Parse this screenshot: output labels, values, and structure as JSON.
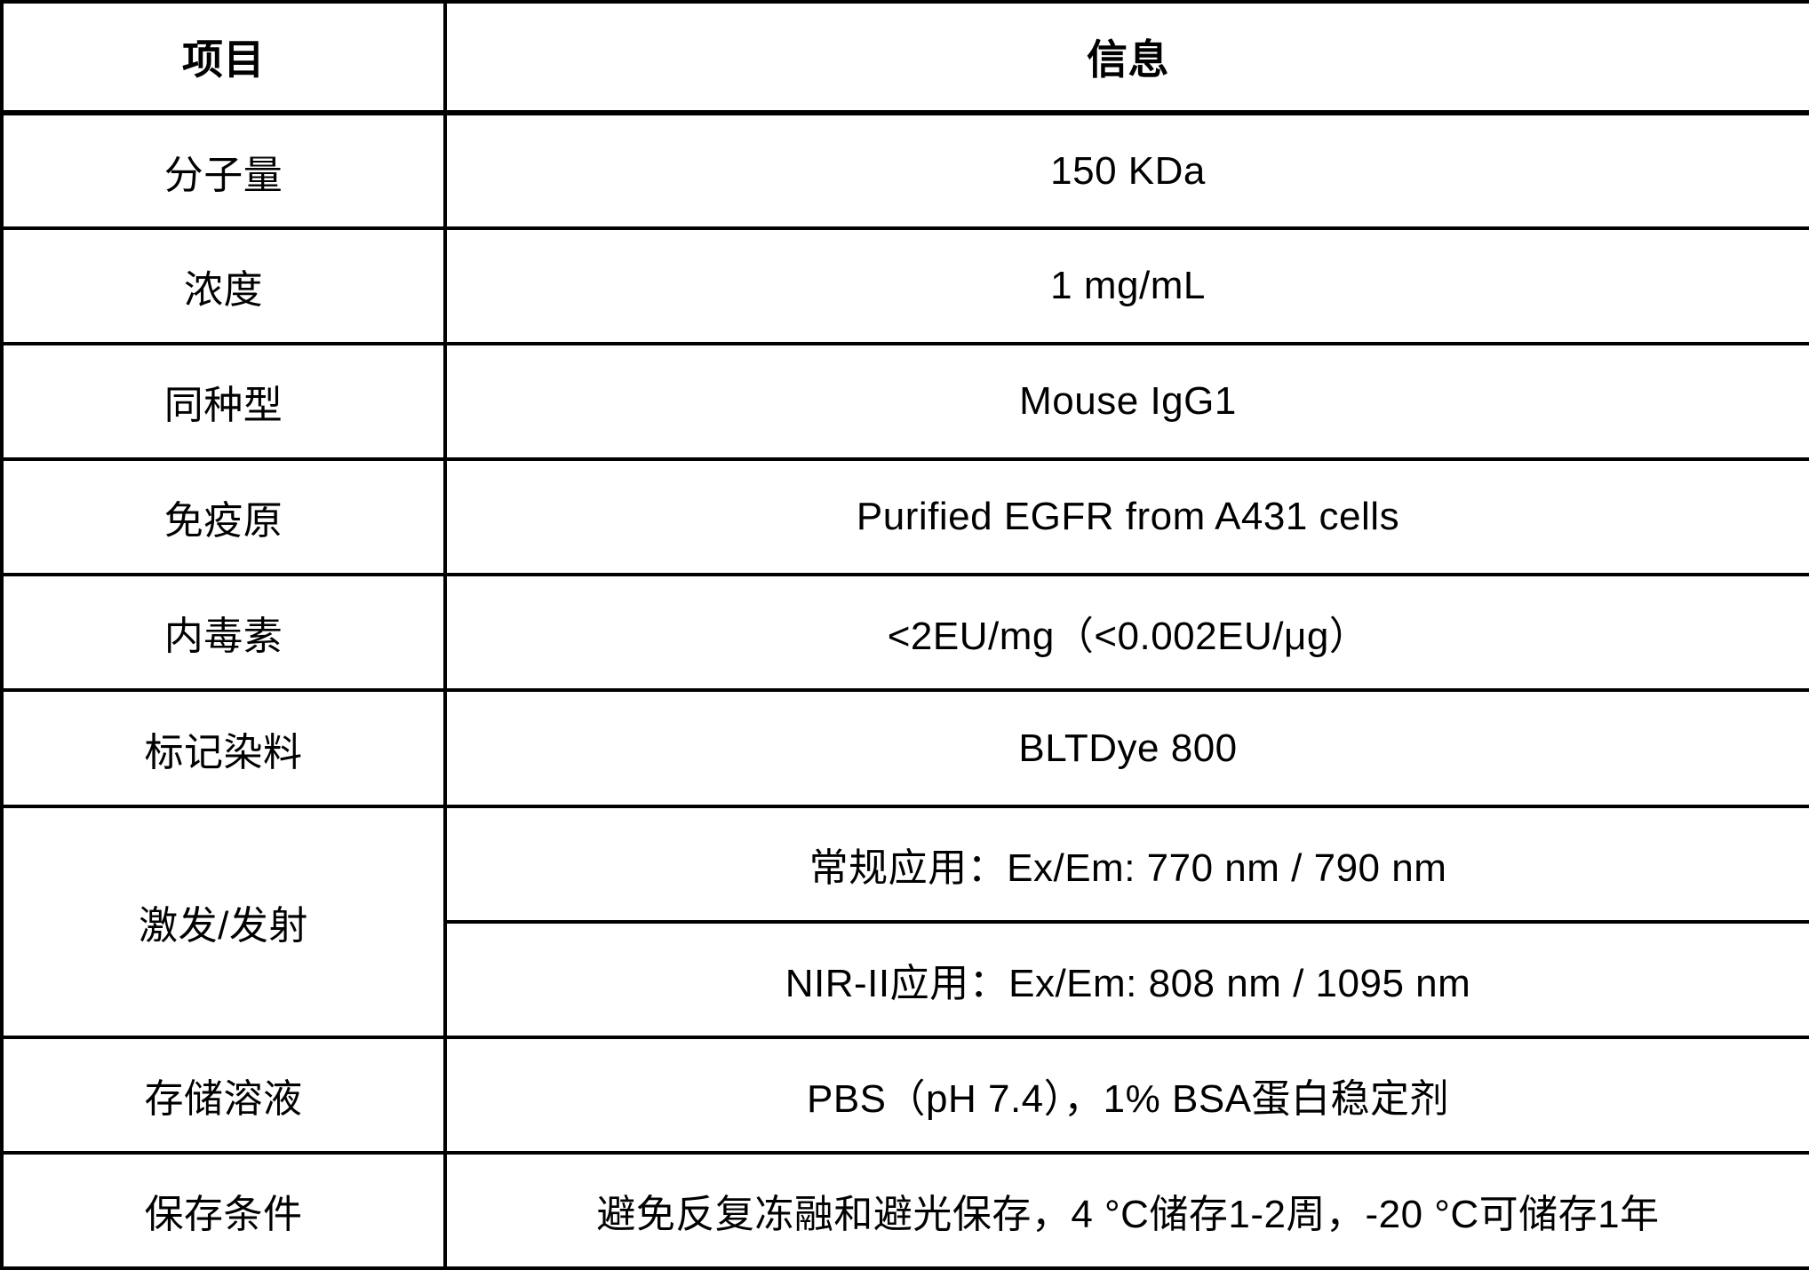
{
  "table": {
    "header": {
      "item": "项目",
      "info": "信息"
    },
    "rows": [
      {
        "label": "分子量",
        "value": "150 KDa"
      },
      {
        "label": "浓度",
        "value": "1 mg/mL"
      },
      {
        "label": "同种型",
        "value": "Mouse IgG1"
      },
      {
        "label": "免疫原",
        "value": "Purified EGFR from A431 cells"
      },
      {
        "label": "内毒素",
        "value": "<2EU/mg（<0.002EU/μg）"
      },
      {
        "label": "标记染料",
        "value": "BLTDye 800"
      },
      {
        "label": "激发/发射",
        "value_primary": "常规应用：Ex/Em: 770 nm / 790 nm",
        "value_secondary": "NIR-II应用：Ex/Em: 808 nm / 1095 nm"
      },
      {
        "label": "存储溶液",
        "value": "PBS（pH 7.4），1% BSA蛋白稳定剂"
      },
      {
        "label": "保存条件",
        "value": "避免反复冻融和避光保存，4 °C储存1-2周，-20 °C可储存1年"
      }
    ]
  },
  "colors": {
    "background": "#ffffff",
    "border": "#000000",
    "text": "#000000"
  }
}
